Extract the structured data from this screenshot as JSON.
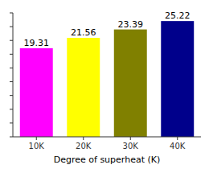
{
  "chart_data": {
    "type": "bar",
    "xlabel": "Degree of superheat (K)",
    "categories": [
      "10K",
      "20K",
      "30K",
      "40K"
    ],
    "values": [
      19.31,
      21.56,
      23.39,
      25.22
    ],
    "colors": [
      "#FF00FF",
      "#FFFF00",
      "#808000",
      "#00008B"
    ],
    "ylim": [
      0,
      27
    ],
    "yticks": [
      0,
      3,
      6,
      9,
      12,
      15,
      18,
      21,
      24,
      27
    ],
    "data_labels": true,
    "tick_labels": "x"
  }
}
